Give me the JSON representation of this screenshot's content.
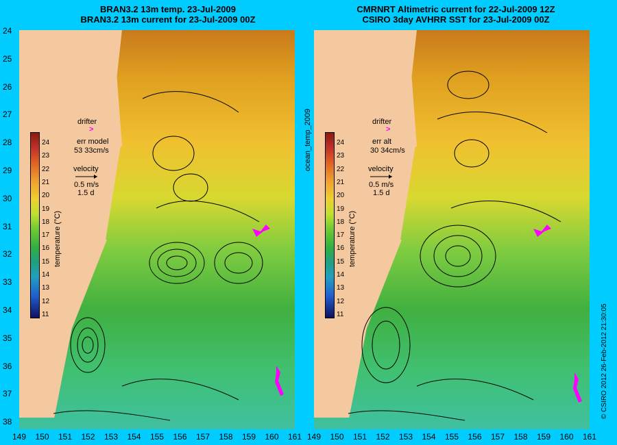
{
  "left_panel": {
    "title_line1": "BRAN3.2 13m temp. 23-Jul-2009",
    "title_line2": "BRAN3.2 13m current for 23-Jul-2009 00Z",
    "drifter_label": "drifter",
    "err_label": "err model",
    "err_value": "53 33cm/s",
    "velocity_label": "velocity",
    "velocity_value": "0.5 m/s",
    "velocity_time": "1.5 d"
  },
  "right_panel": {
    "title_line1": "CMRNRT Altimetric current for 22-Jul-2009 12Z",
    "title_line2": "CSIRO 3day AVHRR SST for 23-Jul-2009 00Z",
    "drifter_label": "drifter",
    "err_label": "err alt",
    "err_value": "30 34cm/s",
    "velocity_label": "velocity",
    "velocity_value": "0.5 m/s",
    "velocity_time": "1.5 d"
  },
  "center_label": "ocean_temp_2009",
  "credit": "© CSIRO 2012   26-Feb-2012 21:30:05",
  "colorbar": {
    "label": "temperature (°C)",
    "ticks": [
      "24",
      "23",
      "22",
      "21",
      "20",
      "19",
      "18",
      "17",
      "16",
      "15",
      "14",
      "13",
      "12",
      "11"
    ]
  },
  "axes": {
    "y_ticks": [
      "24",
      "25",
      "26",
      "27",
      "28",
      "29",
      "30",
      "31",
      "32",
      "33",
      "34",
      "35",
      "36",
      "37",
      "38"
    ],
    "x_ticks_left": [
      "149",
      "150",
      "151",
      "152",
      "153",
      "154",
      "155",
      "156",
      "157",
      "158",
      "159",
      "160",
      "161"
    ],
    "x_ticks_right": [
      "149",
      "150",
      "151",
      "152",
      "153",
      "154",
      "155",
      "156",
      "157",
      "158",
      "159",
      "160",
      "161"
    ]
  }
}
